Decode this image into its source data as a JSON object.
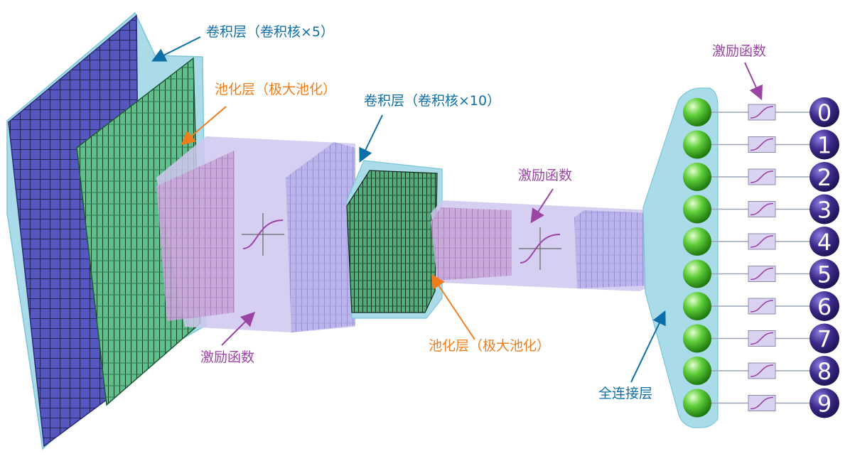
{
  "colors": {
    "accent_blue": "#0d6fa8",
    "accent_orange": "#f07d1c",
    "accent_purple": "#9a44a4",
    "tunnel_cyan": "#a9dbe8",
    "tunnel_lavender": "#c9c2ec",
    "conv_blue": "#4f52b8",
    "conv_green": "#4cae7c",
    "neuron_green": "#4cbf2c",
    "output_purple": "#3e2a8c"
  },
  "labels": {
    "conv1": "卷积层（卷积核×5）",
    "pool1": "池化层（极大池化）",
    "act1": "激励函数",
    "conv2": "卷积层（卷积核×10）",
    "act2": "激励函数",
    "pool2": "池化层（极大池化）",
    "act3": "激励函数",
    "fc": "全连接层"
  },
  "outputs": [
    "0",
    "1",
    "2",
    "3",
    "4",
    "5",
    "6",
    "7",
    "8",
    "9"
  ]
}
